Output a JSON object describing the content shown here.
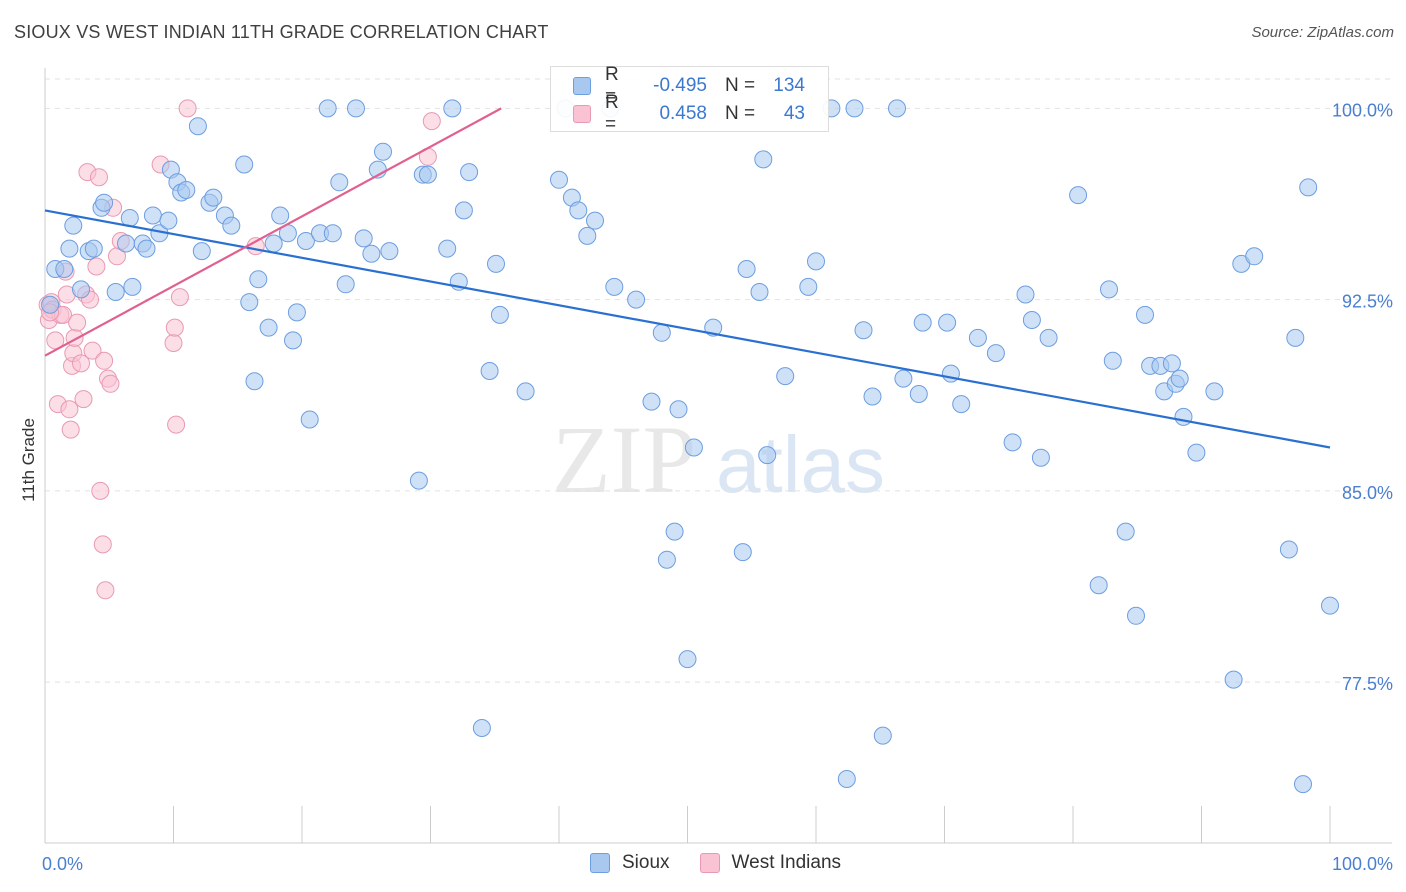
{
  "header": {
    "title": "SIOUX VS WEST INDIAN 11TH GRADE CORRELATION CHART",
    "source": "Source: ZipAtlas.com"
  },
  "legend": {
    "rows": [
      {
        "r_label": "R =",
        "r_value": "-0.495",
        "n_label": "N =",
        "n_value": "134",
        "color": "#a8c8f0",
        "border": "#6d9ee0"
      },
      {
        "r_label": "R =",
        "r_value": "0.458",
        "n_label": "N =",
        "n_value": "43",
        "color": "#f9c3d4",
        "border": "#e89ab3"
      }
    ]
  },
  "bottom_legend": {
    "items": [
      {
        "label": "Sioux",
        "color": "#a8c8f0",
        "border": "#6d9ee0"
      },
      {
        "label": "West Indians",
        "color": "#f9c3d4",
        "border": "#e89ab3"
      }
    ]
  },
  "chart_data": {
    "type": "scatter",
    "xlabel": "",
    "ylabel": "11th Grade",
    "xlim": [
      0,
      100
    ],
    "ylim": [
      70.7,
      100.9
    ],
    "x_tick_labels": [
      "0.0%",
      "100.0%"
    ],
    "y_ticks": [
      100.0,
      92.5,
      85.0,
      77.5
    ],
    "y_tick_labels": [
      "100.0%",
      "92.5%",
      "85.0%",
      "77.5%"
    ],
    "grid": "horizontal dashed",
    "watermark": {
      "zip": "ZIP",
      "atlas": "atlas"
    },
    "series": [
      {
        "name": "Sioux",
        "color": "#a8c8f0",
        "edge": "#6d9ee0",
        "trend": {
          "x": [
            0,
            100
          ],
          "y": [
            96.0,
            86.7
          ],
          "color": "#2a70d0"
        },
        "points": [
          [
            0.4,
            92.3
          ],
          [
            0.8,
            93.7
          ],
          [
            1.5,
            93.7
          ],
          [
            1.9,
            94.5
          ],
          [
            2.2,
            95.4
          ],
          [
            2.8,
            92.9
          ],
          [
            3.4,
            94.4
          ],
          [
            3.8,
            94.5
          ],
          [
            4.4,
            96.1
          ],
          [
            4.6,
            96.3
          ],
          [
            5.5,
            92.8
          ],
          [
            6.3,
            94.7
          ],
          [
            6.6,
            95.7
          ],
          [
            6.8,
            93.0
          ],
          [
            7.6,
            94.7
          ],
          [
            7.9,
            94.5
          ],
          [
            8.4,
            95.8
          ],
          [
            8.9,
            95.1
          ],
          [
            9.6,
            95.6
          ],
          [
            9.8,
            97.6
          ],
          [
            10.3,
            97.1
          ],
          [
            10.6,
            96.7
          ],
          [
            11.0,
            96.8
          ],
          [
            11.9,
            99.3
          ],
          [
            12.2,
            94.4
          ],
          [
            12.8,
            96.3
          ],
          [
            13.1,
            96.5
          ],
          [
            14.0,
            95.8
          ],
          [
            14.5,
            95.4
          ],
          [
            15.5,
            97.8
          ],
          [
            15.9,
            92.4
          ],
          [
            16.3,
            89.3
          ],
          [
            16.6,
            93.3
          ],
          [
            17.4,
            91.4
          ],
          [
            17.8,
            94.7
          ],
          [
            18.3,
            95.8
          ],
          [
            18.9,
            95.1
          ],
          [
            19.3,
            90.9
          ],
          [
            19.6,
            92.0
          ],
          [
            20.6,
            87.8
          ],
          [
            20.3,
            94.8
          ],
          [
            21.4,
            95.1
          ],
          [
            22.0,
            100.0
          ],
          [
            22.4,
            95.1
          ],
          [
            22.9,
            97.1
          ],
          [
            23.4,
            93.1
          ],
          [
            24.2,
            100.0
          ],
          [
            24.8,
            94.9
          ],
          [
            25.4,
            94.3
          ],
          [
            25.9,
            97.6
          ],
          [
            26.3,
            98.3
          ],
          [
            26.8,
            94.4
          ],
          [
            29.1,
            85.4
          ],
          [
            29.4,
            97.4
          ],
          [
            29.8,
            97.4
          ],
          [
            31.3,
            94.5
          ],
          [
            31.7,
            100.0
          ],
          [
            32.2,
            93.2
          ],
          [
            32.6,
            96.0
          ],
          [
            33.0,
            97.5
          ],
          [
            34.0,
            75.7
          ],
          [
            34.6,
            89.7
          ],
          [
            35.1,
            93.9
          ],
          [
            35.4,
            91.9
          ],
          [
            37.4,
            88.9
          ],
          [
            40.0,
            97.2
          ],
          [
            40.5,
            100.0
          ],
          [
            41.0,
            96.5
          ],
          [
            41.5,
            96.0
          ],
          [
            42.2,
            95.0
          ],
          [
            42.8,
            95.6
          ],
          [
            44.0,
            100.0
          ],
          [
            44.3,
            93.0
          ],
          [
            46.0,
            92.5
          ],
          [
            47.2,
            88.5
          ],
          [
            48.0,
            91.2
          ],
          [
            48.4,
            82.3
          ],
          [
            49.0,
            83.4
          ],
          [
            49.3,
            88.2
          ],
          [
            50.0,
            78.4
          ],
          [
            50.5,
            86.7
          ],
          [
            52.0,
            91.4
          ],
          [
            54.3,
            82.6
          ],
          [
            54.6,
            93.7
          ],
          [
            55.6,
            92.8
          ],
          [
            55.9,
            98.0
          ],
          [
            56.2,
            86.4
          ],
          [
            57.6,
            89.5
          ],
          [
            59.4,
            93.0
          ],
          [
            60.0,
            94.0
          ],
          [
            61.2,
            100.0
          ],
          [
            62.4,
            73.7
          ],
          [
            63.0,
            100.0
          ],
          [
            63.7,
            91.3
          ],
          [
            64.4,
            88.7
          ],
          [
            65.2,
            75.4
          ],
          [
            66.3,
            100.0
          ],
          [
            66.8,
            89.4
          ],
          [
            68.0,
            88.8
          ],
          [
            68.3,
            91.6
          ],
          [
            70.2,
            91.6
          ],
          [
            70.5,
            89.6
          ],
          [
            71.3,
            88.4
          ],
          [
            72.6,
            91.0
          ],
          [
            74.0,
            90.4
          ],
          [
            75.3,
            86.9
          ],
          [
            76.8,
            91.7
          ],
          [
            76.3,
            92.7
          ],
          [
            77.5,
            86.3
          ],
          [
            78.1,
            91.0
          ],
          [
            80.4,
            96.6
          ],
          [
            82.0,
            81.3
          ],
          [
            82.8,
            92.9
          ],
          [
            83.1,
            90.1
          ],
          [
            84.1,
            83.4
          ],
          [
            84.9,
            80.1
          ],
          [
            85.6,
            91.9
          ],
          [
            86.0,
            89.9
          ],
          [
            86.8,
            89.9
          ],
          [
            87.1,
            88.9
          ],
          [
            87.7,
            90.0
          ],
          [
            88.0,
            89.2
          ],
          [
            88.3,
            89.4
          ],
          [
            88.6,
            87.9
          ],
          [
            89.6,
            86.5
          ],
          [
            91.0,
            88.9
          ],
          [
            92.5,
            77.6
          ],
          [
            93.1,
            93.9
          ],
          [
            94.1,
            94.2
          ],
          [
            96.8,
            82.7
          ],
          [
            97.3,
            91.0
          ],
          [
            97.9,
            73.5
          ],
          [
            98.3,
            96.9
          ],
          [
            100.0,
            80.5
          ]
        ]
      },
      {
        "name": "West Indians",
        "color": "#f9c3d4",
        "edge": "#e89ab3",
        "trend": {
          "x": [
            0,
            35.5
          ],
          "y": [
            90.3,
            100.0
          ],
          "color": "#e06090"
        },
        "points": [
          [
            0.2,
            92.3
          ],
          [
            0.3,
            91.7
          ],
          [
            0.5,
            92.4
          ],
          [
            0.6,
            92.1
          ],
          [
            0.8,
            90.9
          ],
          [
            1.0,
            88.4
          ],
          [
            1.2,
            91.9
          ],
          [
            1.4,
            91.9
          ],
          [
            1.6,
            93.6
          ],
          [
            1.7,
            92.7
          ],
          [
            1.9,
            88.2
          ],
          [
            2.0,
            87.4
          ],
          [
            2.1,
            89.9
          ],
          [
            2.2,
            90.4
          ],
          [
            2.3,
            91.0
          ],
          [
            2.5,
            91.6
          ],
          [
            2.8,
            90.0
          ],
          [
            3.0,
            88.6
          ],
          [
            3.2,
            92.7
          ],
          [
            3.3,
            97.5
          ],
          [
            3.5,
            92.5
          ],
          [
            3.7,
            90.5
          ],
          [
            4.0,
            93.8
          ],
          [
            4.2,
            97.3
          ],
          [
            4.3,
            85.0
          ],
          [
            4.5,
            82.9
          ],
          [
            4.6,
            90.1
          ],
          [
            4.7,
            81.1
          ],
          [
            4.9,
            89.4
          ],
          [
            5.1,
            89.2
          ],
          [
            5.3,
            96.1
          ],
          [
            5.6,
            94.2
          ],
          [
            5.9,
            94.8
          ],
          [
            9.0,
            97.8
          ],
          [
            10.0,
            90.8
          ],
          [
            10.1,
            91.4
          ],
          [
            10.2,
            87.6
          ],
          [
            10.5,
            92.6
          ],
          [
            11.1,
            100.0
          ],
          [
            16.4,
            94.6
          ],
          [
            29.8,
            98.1
          ],
          [
            30.1,
            99.5
          ],
          [
            0.4,
            92.0
          ]
        ]
      }
    ]
  }
}
